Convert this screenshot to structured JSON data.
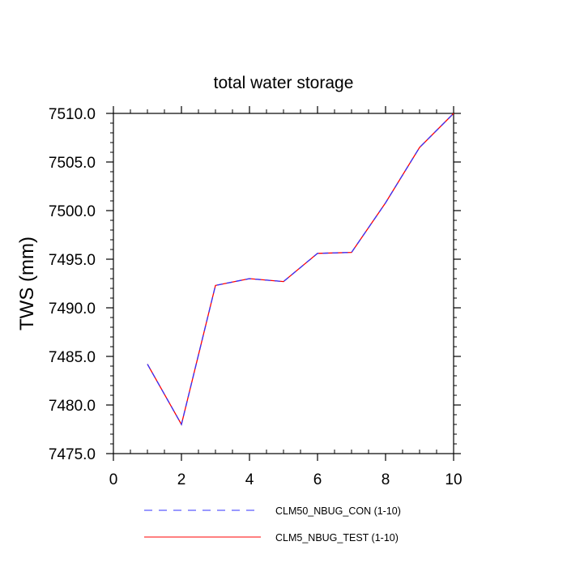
{
  "chart_data": {
    "type": "line",
    "title": "total water storage",
    "ylabel": "TWS  (mm)",
    "xlabel": "",
    "xlim": [
      0,
      10
    ],
    "ylim": [
      7475,
      7510
    ],
    "xticks": [
      "0",
      "2",
      "4",
      "6",
      "8",
      "10"
    ],
    "yticks": [
      "7475.0",
      "7480.0",
      "7485.0",
      "7490.0",
      "7495.0",
      "7500.0",
      "7505.0",
      "7510.0"
    ],
    "x": [
      1,
      2,
      3,
      4,
      5,
      6,
      7,
      8,
      9,
      10
    ],
    "series": [
      {
        "name": "CLM50_NBUG_CON (1-10)",
        "color": "#3333ff",
        "style": "dashed",
        "values": [
          7484.2,
          7478.0,
          7492.3,
          7493.0,
          7492.7,
          7495.6,
          7495.7,
          7500.8,
          7506.5,
          7510.0
        ]
      },
      {
        "name": "CLM5_NBUG_TEST (1-10)",
        "color": "#ff0000",
        "style": "solid",
        "values": [
          7484.2,
          7478.0,
          7492.3,
          7493.0,
          7492.7,
          7495.6,
          7495.7,
          7500.8,
          7506.5,
          7510.0
        ]
      }
    ],
    "grid": false,
    "legend_position": "bottom"
  }
}
